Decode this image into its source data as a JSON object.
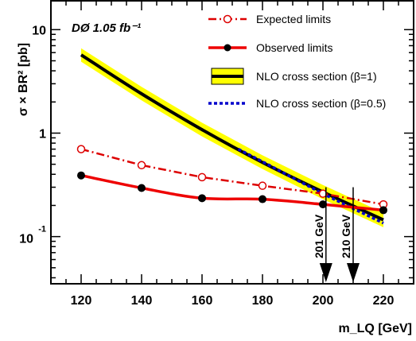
{
  "chart_data": {
    "type": "line",
    "title": "",
    "annotation": "DØ 1.05 fb⁻¹",
    "xlabel": "m_LQ [GeV]",
    "ylabel": "σ × BR² [pb]",
    "xscale": "linear",
    "yscale": "log",
    "xlim": [
      110,
      230
    ],
    "ylim": [
      0.035,
      19
    ],
    "x_ticks": [
      {
        "value": 120,
        "label": "120"
      },
      {
        "value": 140,
        "label": "140"
      },
      {
        "value": 160,
        "label": "160"
      },
      {
        "value": 180,
        "label": "180"
      },
      {
        "value": 200,
        "label": "200"
      },
      {
        "value": 220,
        "label": "220"
      }
    ],
    "y_ticks": [
      {
        "value": 0.1,
        "label": "10",
        "sup": "-1"
      },
      {
        "value": 1,
        "label": "1",
        "sup": ""
      },
      {
        "value": 10,
        "label": "10",
        "sup": ""
      }
    ],
    "legend_position": "top-right",
    "series": [
      {
        "name": "Expected limits",
        "style": "dash-dot",
        "color": "#dd0000",
        "marker": "open-circle",
        "points": [
          [
            120,
            0.7
          ],
          [
            140,
            0.49
          ],
          [
            160,
            0.375
          ],
          [
            180,
            0.31
          ],
          [
            200,
            0.26
          ],
          [
            220,
            0.205
          ]
        ]
      },
      {
        "name": "Observed limits",
        "style": "solid",
        "color": "#ee0000",
        "marker": "filled-circle",
        "points": [
          [
            120,
            0.39
          ],
          [
            140,
            0.295
          ],
          [
            160,
            0.235
          ],
          [
            180,
            0.23
          ],
          [
            200,
            0.205
          ],
          [
            220,
            0.18
          ]
        ]
      },
      {
        "name": "NLO cross section (β=1)",
        "style": "solid",
        "color": "#000000",
        "band_color": "#ffff00",
        "points": [
          [
            120,
            5.7
          ],
          [
            140,
            2.4
          ],
          [
            160,
            1.08
          ],
          [
            180,
            0.52
          ],
          [
            200,
            0.27
          ],
          [
            220,
            0.145
          ]
        ],
        "band_lower": [
          [
            120,
            4.9
          ],
          [
            140,
            2.07
          ],
          [
            160,
            0.93
          ],
          [
            180,
            0.45
          ],
          [
            200,
            0.23
          ],
          [
            220,
            0.123
          ]
        ],
        "band_upper": [
          [
            120,
            6.6
          ],
          [
            140,
            2.8
          ],
          [
            160,
            1.26
          ],
          [
            180,
            0.61
          ],
          [
            200,
            0.315
          ],
          [
            220,
            0.17
          ]
        ]
      },
      {
        "name": "NLO cross section (β=0.5)",
        "style": "dotted",
        "color": "#0000cc",
        "points": [
          [
            172,
            0.7
          ],
          [
            180,
            0.53
          ],
          [
            200,
            0.26
          ],
          [
            220,
            0.135
          ]
        ]
      }
    ],
    "arrows": [
      {
        "x": 201,
        "label": "201 GeV"
      },
      {
        "x": 210,
        "label": "210 GeV"
      }
    ]
  }
}
